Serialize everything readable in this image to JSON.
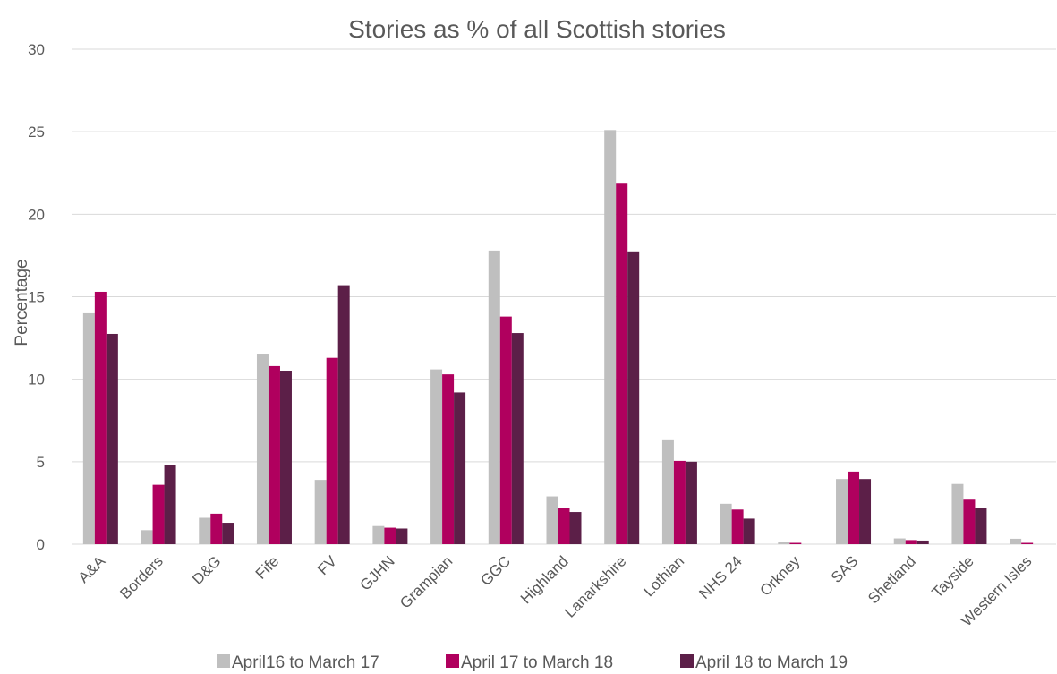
{
  "chart_data": {
    "type": "bar",
    "title": "Stories as % of all Scottish  stories",
    "xlabel": "",
    "ylabel": "Percentage",
    "ylim": [
      0,
      30
    ],
    "yticks": [
      0,
      5,
      10,
      15,
      20,
      25,
      30
    ],
    "grid": true,
    "legend_position": "bottom",
    "categories": [
      "A&A",
      "Borders",
      "D&G",
      "Fife",
      "FV",
      "GJHN",
      "Grampian",
      "GGC",
      "Highland",
      "Lanarkshire",
      "Lothian",
      "NHS 24",
      "Orkney",
      "SAS",
      "Shetland",
      "Tayside",
      "Western Isles"
    ],
    "series": [
      {
        "name": "April16 to March 17",
        "color": "#bfbfbf",
        "values": [
          14.0,
          0.85,
          1.6,
          11.5,
          3.9,
          1.1,
          10.6,
          17.8,
          2.9,
          25.1,
          6.3,
          2.45,
          0.12,
          3.95,
          0.35,
          3.65,
          0.33
        ]
      },
      {
        "name": "April 17 to March 18",
        "color": "#b0005e",
        "values": [
          15.3,
          3.6,
          1.85,
          10.8,
          11.3,
          1.0,
          10.3,
          13.8,
          2.2,
          21.85,
          5.05,
          2.1,
          0.08,
          4.4,
          0.25,
          2.7,
          0.08
        ]
      },
      {
        "name": "April 18 to March 19",
        "color": "#5c1f48",
        "values": [
          12.75,
          4.8,
          1.3,
          10.5,
          15.7,
          0.95,
          9.2,
          12.8,
          1.95,
          17.75,
          5.0,
          1.55,
          0.0,
          3.95,
          0.22,
          2.2,
          0.0
        ]
      }
    ]
  }
}
